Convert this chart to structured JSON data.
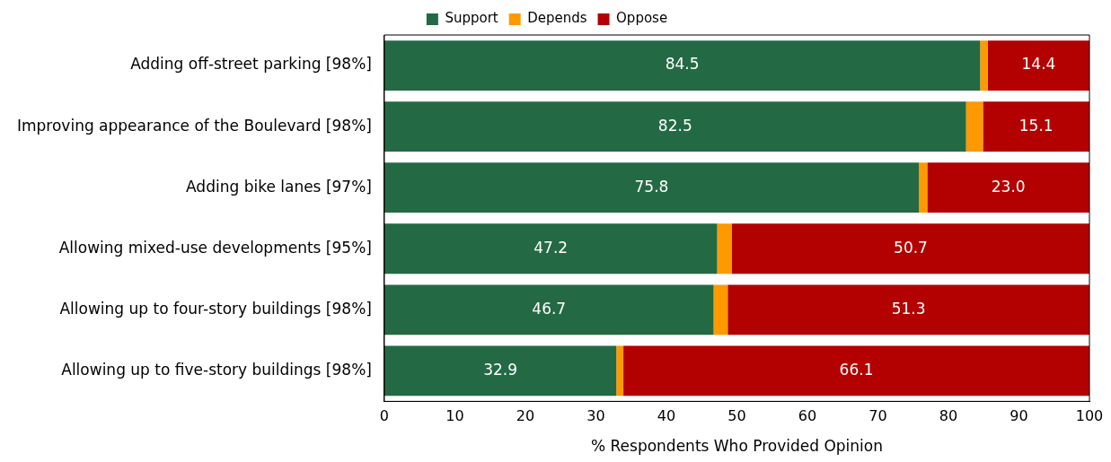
{
  "chart_data": {
    "type": "bar",
    "orientation": "horizontal",
    "stacked": true,
    "categories": [
      "Adding off-street parking [98%]",
      "Improving appearance of the Boulevard [98%]",
      "Adding bike lanes [97%]",
      "Allowing mixed-use developments [95%]",
      "Allowing up to four-story buildings [98%]",
      "Allowing up to five-story buildings [98%]"
    ],
    "series": [
      {
        "name": "Support",
        "color": "#236a44",
        "values": [
          84.5,
          82.5,
          75.8,
          47.2,
          46.7,
          32.9
        ],
        "value_labels": [
          "84.5",
          "82.5",
          "75.8",
          "47.2",
          "46.7",
          "32.9"
        ]
      },
      {
        "name": "Depends",
        "color": "#ff9900",
        "values": [
          1.1,
          2.4,
          1.2,
          2.1,
          2.0,
          1.0
        ],
        "value_labels": [
          null,
          null,
          null,
          null,
          null,
          null
        ]
      },
      {
        "name": "Oppose",
        "color": "#b30000",
        "values": [
          14.4,
          15.1,
          23.0,
          50.7,
          51.3,
          66.1
        ],
        "value_labels": [
          "14.4",
          "15.1",
          "23.0",
          "50.7",
          "51.3",
          "66.1"
        ]
      }
    ],
    "xlim": [
      0,
      100
    ],
    "xticks": [
      0,
      10,
      20,
      30,
      40,
      50,
      60,
      70,
      80,
      90,
      100
    ],
    "xlabel": "% Respondents Who Provided Opinion",
    "legend": "top",
    "grid": false
  }
}
